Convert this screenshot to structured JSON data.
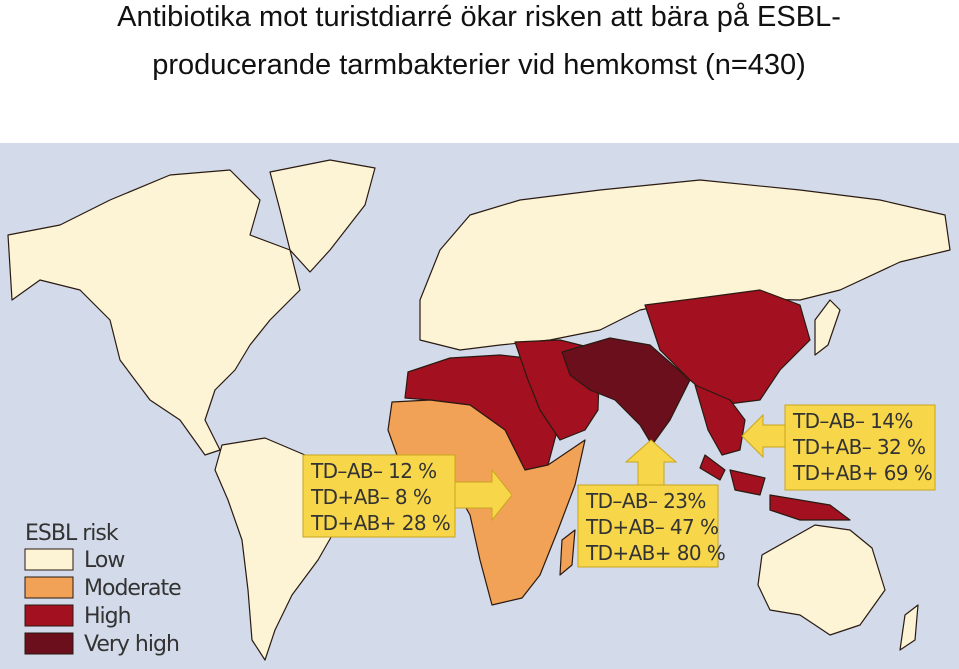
{
  "title_lines": [
    "Antibiotika mot turistdiarré ökar risken att bära på ESBL-",
    "producerande tarmbakterier vid hemkomst (n=430)"
  ],
  "legend": {
    "title": "ESBL risk",
    "items": [
      {
        "label": "Low",
        "color": "#fcf4d4"
      },
      {
        "label": "Moderate",
        "color": "#f2a256"
      },
      {
        "label": "High",
        "color": "#a3101f"
      },
      {
        "label": "Very high",
        "color": "#6a0f1b"
      }
    ]
  },
  "callouts": [
    {
      "lines": [
        "TD–AB– 12 %",
        "TD+AB– 8 %",
        "TD+AB+ 28 %"
      ]
    },
    {
      "lines": [
        "TD–AB– 23%",
        "TD+AB– 47 %",
        "TD+AB+ 80 %"
      ]
    },
    {
      "lines": [
        "TD–AB– 14%",
        "TD+AB– 32 %",
        "TD+AB+ 69 %"
      ]
    }
  ]
}
